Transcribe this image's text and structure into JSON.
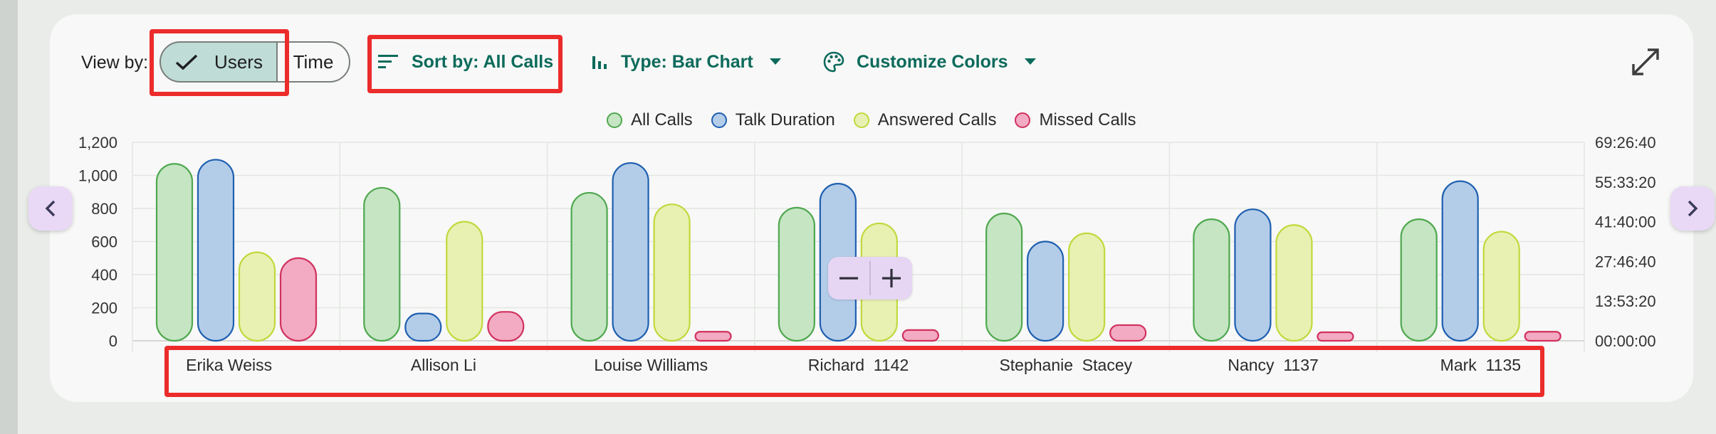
{
  "toolbar": {
    "view_by_label": "View by:",
    "view_options": [
      "Users",
      "Time"
    ],
    "selected_view": "Users",
    "sort_label": "Sort by: All Calls",
    "type_label": "Type: Bar Chart",
    "colors_label": "Customize Colors"
  },
  "icons": {
    "check": "check-icon",
    "sort": "sort-icon",
    "bar_chart": "bar-chart-icon",
    "palette": "palette-icon",
    "dropdown": "chevron-down-icon",
    "expand": "expand-icon",
    "prev": "chevron-left-icon",
    "next": "chevron-right-icon",
    "zoom_out": "minus-icon",
    "zoom_in": "plus-icon"
  },
  "colors": {
    "accent": "#0c6a5b",
    "highlight": "#ec2b2b",
    "all_calls_fill": "#c5e5c3",
    "all_calls_stroke": "#4fa84f",
    "talk_fill": "#b3cde9",
    "talk_stroke": "#1f5fb0",
    "answered_fill": "#e8f1b2",
    "answered_stroke": "#c2d83c",
    "missed_fill": "#f3aac3",
    "missed_stroke": "#d1315f"
  },
  "chart_data": {
    "type": "bar",
    "categories": [
      "Erika Weiss",
      "Allison Li",
      "Louise Williams",
      "Richard  1142",
      "Stephanie  Stacey",
      "Nancy  1137",
      "Mark  1135"
    ],
    "series": [
      {
        "name": "All Calls",
        "axis": "left",
        "values": [
          1070,
          925,
          895,
          805,
          770,
          735,
          735
        ]
      },
      {
        "name": "Talk Duration",
        "axis": "right",
        "values": [
          1095,
          165,
          1075,
          950,
          600,
          795,
          965
        ]
      },
      {
        "name": "Answered Calls",
        "axis": "left",
        "values": [
          535,
          720,
          825,
          710,
          650,
          700,
          660
        ]
      },
      {
        "name": "Missed Calls",
        "axis": "left",
        "values": [
          500,
          175,
          55,
          65,
          95,
          25,
          55
        ]
      }
    ],
    "y_left": {
      "min": 0,
      "max": 1200,
      "ticks": [
        "0",
        "200",
        "400",
        "600",
        "800",
        "1,000",
        "1,200"
      ]
    },
    "y_right": {
      "ticks": [
        "00:00:00",
        "13:53:20",
        "27:46:40",
        "41:40:00",
        "55:33:20",
        "69:26:40"
      ]
    },
    "legend_position": "top-center",
    "grid": true
  }
}
